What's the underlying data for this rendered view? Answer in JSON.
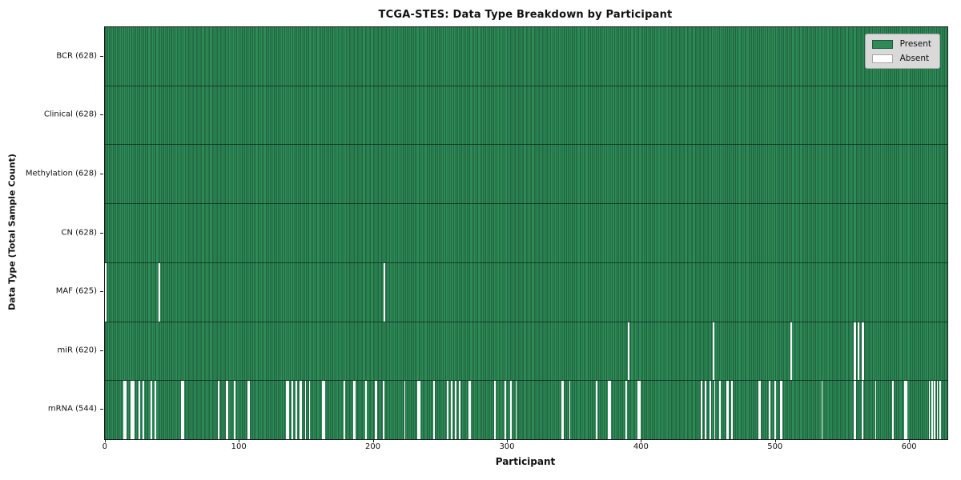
{
  "title": "TCGA-STES: Data Type Breakdown by Participant",
  "colors": {
    "present": "#2e8b57",
    "present_edge": "#1c5e3c",
    "absent": "#ffffff",
    "axis": "#1a1a1a",
    "legend_bg": "#d9d9d9",
    "legend_border": "#a8a8a8"
  },
  "legend": {
    "items": [
      {
        "label": "Present",
        "color": "#2e8b57"
      },
      {
        "label": "Absent",
        "color": "#ffffff"
      }
    ]
  },
  "chart_data": {
    "type": "heatmap",
    "title": "TCGA-STES: Data Type Breakdown by Participant",
    "xlabel": "Participant",
    "ylabel": "Data Type (Total Sample Count)",
    "legend": [
      "Present",
      "Absent"
    ],
    "legend_position": "upper right",
    "grid": false,
    "total_participants": 628,
    "x_ticks": [
      0,
      100,
      200,
      300,
      400,
      500,
      600
    ],
    "xlim": [
      0,
      628
    ],
    "rows": [
      {
        "name": "bcr",
        "label": "BCR (628)",
        "present_count": 628,
        "absent_participants": []
      },
      {
        "name": "clinical",
        "label": "Clinical (628)",
        "present_count": 628,
        "absent_participants": []
      },
      {
        "name": "methylation",
        "label": "Methylation (628)",
        "present_count": 628,
        "absent_participants": []
      },
      {
        "name": "cn",
        "label": "CN (628)",
        "present_count": 628,
        "absent_participants": []
      },
      {
        "name": "maf",
        "label": "MAF (625)",
        "present_count": 625,
        "absent_participants": [
          0,
          40,
          208
        ]
      },
      {
        "name": "mir",
        "label": "miR (620)",
        "present_count": 620,
        "absent_participants": [
          390,
          453,
          511,
          558,
          559,
          561,
          564,
          565
        ]
      },
      {
        "name": "mrna",
        "label": "mRNA (544)",
        "present_count": 544,
        "absent_participants": [
          14,
          15,
          19,
          20,
          21,
          25,
          28,
          34,
          37,
          57,
          58,
          84,
          90,
          91,
          96,
          106,
          107,
          135,
          136,
          139,
          142,
          145,
          146,
          149,
          152,
          162,
          163,
          178,
          185,
          186,
          194,
          201,
          202,
          207,
          223,
          233,
          234,
          245,
          255,
          258,
          261,
          264,
          271,
          272,
          290,
          298,
          302,
          306,
          340,
          341,
          346,
          366,
          375,
          376,
          388,
          397,
          398,
          444,
          447,
          451,
          454,
          458,
          463,
          464,
          467,
          487,
          488,
          495,
          499,
          503,
          504,
          534,
          558,
          559,
          564,
          574,
          587,
          596,
          597,
          614,
          616,
          618,
          620,
          622
        ]
      }
    ]
  }
}
